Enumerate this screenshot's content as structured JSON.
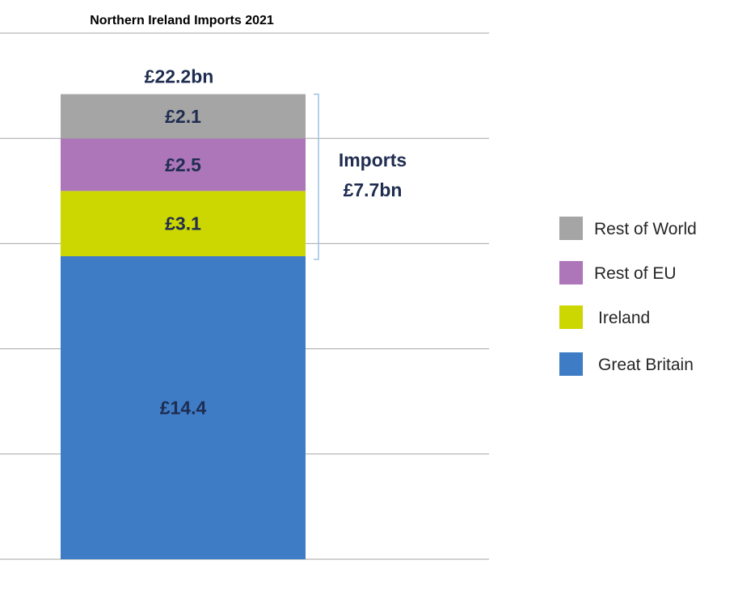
{
  "chart_data": {
    "type": "bar",
    "stacked": true,
    "title": "Northern Ireland Imports 2021",
    "categories": [
      "Northern Ireland Imports 2021"
    ],
    "series": [
      {
        "name": "Great Britain",
        "values": [
          14.4
        ],
        "label": "£14.4",
        "color": "#3f7cc6"
      },
      {
        "name": "Ireland",
        "values": [
          3.1
        ],
        "label": "£3.1",
        "color": "#ccd600"
      },
      {
        "name": "Rest of EU",
        "values": [
          2.5
        ],
        "label": "£2.5",
        "color": "#ad76b9"
      },
      {
        "name": "Rest of World",
        "values": [
          2.1
        ],
        "label": "£2.1",
        "color": "#a5a5a5"
      }
    ],
    "total_label": "£22.2bn",
    "annotation": {
      "line1": "Imports",
      "line2": "£7.7bn",
      "covers": [
        "Ireland",
        "Rest of EU",
        "Rest of World"
      ]
    },
    "ylim": [
      0,
      25
    ],
    "gridlines": [
      0,
      5,
      10,
      15,
      20,
      25
    ],
    "grid": true,
    "xlabel": "",
    "ylabel": "",
    "legend_position": "right",
    "legend_order": [
      "Rest of World",
      "Rest of EU",
      "Ireland",
      "Great Britain"
    ],
    "label_color": "#1f2d50"
  }
}
